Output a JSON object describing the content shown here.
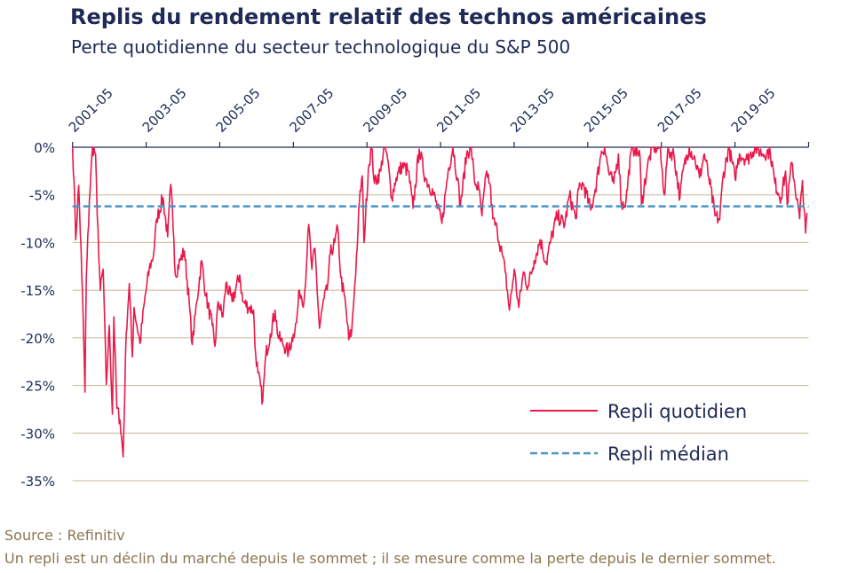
{
  "header": {
    "title": "Replis du rendement relatif des technos américaines",
    "subtitle": "Perte quotidienne du secteur technologique du S&P 500"
  },
  "footer": {
    "source": "Source : Refinitiv",
    "note": "Un repli est un déclin du marché depuis le sommet ; il se mesure comme la perte depuis le dernier sommet."
  },
  "colors": {
    "daily": "#e8194b",
    "median": "#4a93c4",
    "grid": "#c7b799",
    "axis": "#1f2a56"
  },
  "chart_data": {
    "type": "line",
    "title": "Replis du rendement relatif des technos américaines",
    "subtitle": "Perte quotidienne du secteur technologique du S&P 500",
    "x_axis": {
      "position": "top",
      "tick_labels": [
        "2001-05",
        "2003-05",
        "2005-05",
        "2007-05",
        "2009-05",
        "2011-05",
        "2013-05",
        "2015-05",
        "2017-05",
        "2019-05"
      ],
      "range": [
        "2001-05-01",
        "2021-05-01"
      ]
    },
    "y_axis": {
      "tick_labels": [
        "0%",
        "-5%",
        "-10%",
        "-15%",
        "-20%",
        "-25%",
        "-30%",
        "-35%"
      ],
      "ticks": [
        0,
        -5,
        -10,
        -15,
        -20,
        -25,
        -30,
        -35
      ],
      "ylim": [
        -35,
        0
      ],
      "unit": "%"
    },
    "grid": "horizontal",
    "legend": {
      "placement": "bottom-right",
      "entries": [
        "Repli quotidien",
        "Repli médian"
      ]
    },
    "series": [
      {
        "name": "Repli quotidien",
        "style": "solid",
        "points": [
          [
            "2001-05-01",
            0
          ],
          [
            "2001-05-15",
            -3.5
          ],
          [
            "2001-06-01",
            -9.7
          ],
          [
            "2001-07-01",
            -4
          ],
          [
            "2001-08-01",
            -13.4
          ],
          [
            "2001-08-15",
            -18
          ],
          [
            "2001-09-01",
            -25.7
          ],
          [
            "2001-09-15",
            -13.7
          ],
          [
            "2001-10-15",
            -5.7
          ],
          [
            "2001-11-15",
            0
          ],
          [
            "2001-12-15",
            -0.7
          ],
          [
            "2002-01-01",
            -7.2
          ],
          [
            "2002-02-01",
            -15
          ],
          [
            "2002-03-01",
            -12.8
          ],
          [
            "2002-04-01",
            -24.9
          ],
          [
            "2002-05-01",
            -18.7
          ],
          [
            "2002-06-01",
            -28
          ],
          [
            "2002-06-15",
            -17.8
          ],
          [
            "2002-07-15",
            -27.4
          ],
          [
            "2002-08-15",
            -28.6
          ],
          [
            "2002-09-15",
            -32.5
          ],
          [
            "2002-10-15",
            -19.6
          ],
          [
            "2002-11-15",
            -14.3
          ],
          [
            "2002-12-15",
            -22
          ],
          [
            "2003-01-01",
            -16.8
          ],
          [
            "2003-03-01",
            -20.6
          ],
          [
            "2003-04-15",
            -16.2
          ],
          [
            "2003-06-01",
            -12.8
          ],
          [
            "2003-07-15",
            -11.2
          ],
          [
            "2003-08-15",
            -7.5
          ],
          [
            "2003-10-15",
            -5.3
          ],
          [
            "2003-12-01",
            -9.4
          ],
          [
            "2004-01-01",
            -3.9
          ],
          [
            "2004-02-01",
            -9.7
          ],
          [
            "2004-02-15",
            -13.4
          ],
          [
            "2004-04-01",
            -11.9
          ],
          [
            "2004-05-15",
            -10.9
          ],
          [
            "2004-07-01",
            -16.2
          ],
          [
            "2004-08-01",
            -20.7
          ],
          [
            "2004-09-15",
            -16.2
          ],
          [
            "2004-11-01",
            -11.9
          ],
          [
            "2004-12-15",
            -15.6
          ],
          [
            "2005-02-15",
            -18.7
          ],
          [
            "2005-03-15",
            -20.9
          ],
          [
            "2005-04-15",
            -16.2
          ],
          [
            "2005-06-01",
            -17.8
          ],
          [
            "2005-07-01",
            -14.3
          ],
          [
            "2005-09-01",
            -16.2
          ],
          [
            "2005-11-15",
            -13.4
          ],
          [
            "2005-12-15",
            -16.2
          ],
          [
            "2006-02-15",
            -16.8
          ],
          [
            "2006-04-01",
            -17.1
          ],
          [
            "2006-04-15",
            -20.9
          ],
          [
            "2006-05-15",
            -23.7
          ],
          [
            "2006-07-01",
            -26.6
          ],
          [
            "2006-08-01",
            -21.8
          ],
          [
            "2006-09-15",
            -19.6
          ],
          [
            "2006-11-01",
            -17.1
          ],
          [
            "2006-12-01",
            -19.9
          ],
          [
            "2007-01-15",
            -20.6
          ],
          [
            "2007-03-15",
            -21.5
          ],
          [
            "2007-05-01",
            -19.6
          ],
          [
            "2007-06-01",
            -18.4
          ],
          [
            "2007-07-01",
            -15
          ],
          [
            "2007-08-15",
            -16.2
          ],
          [
            "2007-09-15",
            -11.2
          ],
          [
            "2007-10-01",
            -8.1
          ],
          [
            "2007-11-01",
            -12.8
          ],
          [
            "2007-12-01",
            -10.6
          ],
          [
            "2008-01-15",
            -19
          ],
          [
            "2008-03-01",
            -15.9
          ],
          [
            "2008-04-01",
            -15
          ],
          [
            "2008-05-01",
            -11.2
          ],
          [
            "2008-06-15",
            -10
          ],
          [
            "2008-07-15",
            -8.5
          ],
          [
            "2008-08-15",
            -13.7
          ],
          [
            "2008-10-01",
            -16.5
          ],
          [
            "2008-11-01",
            -20.2
          ],
          [
            "2008-12-01",
            -19.3
          ],
          [
            "2009-01-01",
            -14.3
          ],
          [
            "2009-02-01",
            -8.8
          ],
          [
            "2009-02-15",
            -5.7
          ],
          [
            "2009-03-15",
            -3
          ],
          [
            "2009-04-01",
            -10
          ],
          [
            "2009-05-15",
            -2.2
          ],
          [
            "2009-06-15",
            0
          ],
          [
            "2009-07-15",
            -3.8
          ],
          [
            "2009-09-15",
            -2.5
          ],
          [
            "2009-10-15",
            0
          ],
          [
            "2009-11-15",
            -0.7
          ],
          [
            "2010-01-01",
            -5.3
          ],
          [
            "2010-02-15",
            -3.2
          ],
          [
            "2010-04-15",
            -1.9
          ],
          [
            "2010-06-15",
            -2.5
          ],
          [
            "2010-08-01",
            -6.4
          ],
          [
            "2010-10-01",
            -0.2
          ],
          [
            "2010-12-01",
            -3.2
          ],
          [
            "2011-02-15",
            -4.7
          ],
          [
            "2011-05-15",
            -8
          ],
          [
            "2011-07-15",
            -2.5
          ],
          [
            "2011-09-01",
            0
          ],
          [
            "2011-10-15",
            -3.2
          ],
          [
            "2011-11-15",
            -6.1
          ],
          [
            "2012-01-15",
            -0.7
          ],
          [
            "2012-03-01",
            0
          ],
          [
            "2012-04-01",
            -3.5
          ],
          [
            "2012-05-15",
            -4.4
          ],
          [
            "2012-06-15",
            -7.2
          ],
          [
            "2012-08-01",
            -2.5
          ],
          [
            "2012-09-01",
            -3.8
          ],
          [
            "2012-10-01",
            -7.5
          ],
          [
            "2012-11-15",
            -8.8
          ],
          [
            "2013-01-01",
            -11.2
          ],
          [
            "2013-02-01",
            -13.1
          ],
          [
            "2013-03-15",
            -17.1
          ],
          [
            "2013-05-01",
            -12.8
          ],
          [
            "2013-06-15",
            -16.8
          ],
          [
            "2013-08-01",
            -13.1
          ],
          [
            "2013-09-15",
            -14.6
          ],
          [
            "2013-11-15",
            -11.9
          ],
          [
            "2014-01-15",
            -9.7
          ],
          [
            "2014-03-15",
            -12.2
          ],
          [
            "2014-05-01",
            -9.7
          ],
          [
            "2014-07-01",
            -7.2
          ],
          [
            "2014-09-15",
            -8.1
          ],
          [
            "2014-11-01",
            -5
          ],
          [
            "2015-01-01",
            -7.5
          ],
          [
            "2015-02-01",
            -4.4
          ],
          [
            "2015-03-15",
            -3.8
          ],
          [
            "2015-06-01",
            -6.6
          ],
          [
            "2015-07-15",
            -4.4
          ],
          [
            "2015-09-15",
            -0.4
          ],
          [
            "2015-10-15",
            0
          ],
          [
            "2015-12-01",
            -2.9
          ],
          [
            "2016-01-15",
            -3.8
          ],
          [
            "2016-03-01",
            -0.7
          ],
          [
            "2016-04-01",
            -6.2
          ],
          [
            "2016-05-15",
            -5.6
          ],
          [
            "2016-07-01",
            -0.7
          ],
          [
            "2016-08-15",
            0
          ],
          [
            "2016-10-01",
            -1
          ],
          [
            "2016-10-15",
            -6
          ],
          [
            "2016-12-15",
            -1.9
          ],
          [
            "2017-02-01",
            0
          ],
          [
            "2017-04-15",
            0
          ],
          [
            "2017-06-01",
            -5
          ],
          [
            "2017-07-01",
            -0.4
          ],
          [
            "2017-09-01",
            -0.7
          ],
          [
            "2017-11-01",
            -5.3
          ],
          [
            "2017-12-01",
            -2.5
          ],
          [
            "2018-02-01",
            0
          ],
          [
            "2018-04-01",
            -1.3
          ],
          [
            "2018-05-15",
            -3.2
          ],
          [
            "2018-07-01",
            -0.7
          ],
          [
            "2018-08-15",
            -3.2
          ],
          [
            "2018-10-15",
            -7.2
          ],
          [
            "2018-12-01",
            -7.6
          ],
          [
            "2019-01-01",
            -3.2
          ],
          [
            "2019-03-01",
            0
          ],
          [
            "2019-05-01",
            -3.2
          ],
          [
            "2019-06-15",
            -0.7
          ],
          [
            "2019-09-01",
            -1.3
          ],
          [
            "2019-11-15",
            0
          ],
          [
            "2020-02-01",
            -0.7
          ],
          [
            "2020-04-15",
            -0.4
          ],
          [
            "2020-06-01",
            -3.8
          ],
          [
            "2020-08-01",
            -5.3
          ],
          [
            "2020-09-15",
            -2.5
          ],
          [
            "2020-10-01",
            -6
          ],
          [
            "2020-11-15",
            -1.6
          ],
          [
            "2021-02-01",
            -7.5
          ],
          [
            "2021-03-01",
            -3.5
          ],
          [
            "2021-04-01",
            -9
          ],
          [
            "2021-04-15",
            -6.9
          ]
        ]
      },
      {
        "name": "Repli médian",
        "style": "dashed",
        "value": -6.2
      }
    ]
  }
}
